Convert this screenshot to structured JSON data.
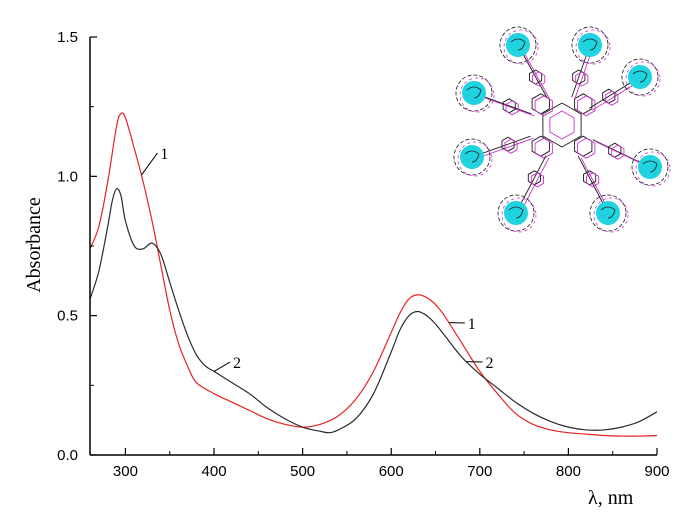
{
  "chart_data": {
    "type": "line",
    "xlabel": "λ, nm",
    "ylabel": "Absorbance",
    "xlim": [
      260,
      900
    ],
    "ylim": [
      0.0,
      1.5
    ],
    "x_ticks": [
      300,
      400,
      500,
      600,
      700,
      800,
      900
    ],
    "y_ticks": [
      0.0,
      0.5,
      1.0,
      1.5
    ],
    "y_tick_labels": [
      "0.0",
      "0.5",
      "1.0",
      "1.5"
    ],
    "grid": false,
    "legend": "none",
    "series": [
      {
        "name": "1",
        "color": "#e8231f",
        "x": [
          260,
          270,
          280,
          290,
          295,
          300,
          310,
          320,
          330,
          340,
          350,
          360,
          370,
          380,
          400,
          420,
          440,
          460,
          480,
          500,
          520,
          540,
          560,
          580,
          600,
          610,
          620,
          630,
          640,
          650,
          660,
          680,
          700,
          720,
          740,
          760,
          780,
          800,
          820,
          840,
          860,
          880,
          900
        ],
        "y": [
          0.74,
          0.82,
          0.98,
          1.18,
          1.225,
          1.21,
          1.1,
          0.98,
          0.84,
          0.68,
          0.52,
          0.4,
          0.32,
          0.26,
          0.22,
          0.19,
          0.16,
          0.13,
          0.11,
          0.1,
          0.11,
          0.14,
          0.2,
          0.3,
          0.44,
          0.51,
          0.56,
          0.575,
          0.565,
          0.54,
          0.5,
          0.4,
          0.3,
          0.22,
          0.15,
          0.11,
          0.09,
          0.08,
          0.075,
          0.07,
          0.068,
          0.068,
          0.07
        ]
      },
      {
        "name": "2",
        "color": "#2b2b2b",
        "x": [
          260,
          270,
          280,
          285,
          290,
          295,
          300,
          310,
          320,
          330,
          340,
          350,
          360,
          370,
          380,
          390,
          400,
          420,
          440,
          460,
          480,
          500,
          520,
          530,
          540,
          560,
          580,
          600,
          610,
          620,
          630,
          640,
          650,
          660,
          680,
          700,
          720,
          740,
          760,
          780,
          800,
          820,
          840,
          860,
          880,
          900
        ],
        "y": [
          0.56,
          0.66,
          0.82,
          0.91,
          0.955,
          0.93,
          0.84,
          0.75,
          0.74,
          0.76,
          0.72,
          0.62,
          0.52,
          0.43,
          0.36,
          0.32,
          0.3,
          0.26,
          0.22,
          0.17,
          0.13,
          0.1,
          0.085,
          0.08,
          0.09,
          0.13,
          0.22,
          0.37,
          0.45,
          0.5,
          0.515,
          0.5,
          0.47,
          0.43,
          0.35,
          0.29,
          0.24,
          0.19,
          0.15,
          0.12,
          0.1,
          0.09,
          0.09,
          0.1,
          0.12,
          0.155
        ]
      }
    ],
    "curve_labels": [
      {
        "text": "1",
        "series": 0,
        "x": 318,
        "y": 1.08
      },
      {
        "text": "1",
        "series": 0,
        "x": 665,
        "y": 0.47
      },
      {
        "text": "2",
        "series": 1,
        "x": 400,
        "y": 0.33
      },
      {
        "text": "2",
        "series": 1,
        "x": 685,
        "y": 0.33
      }
    ]
  },
  "inset": {
    "molecule_color": "#1a1a1a",
    "accent_color": "#cc33cc",
    "cation_color": "#1fd3e0"
  }
}
